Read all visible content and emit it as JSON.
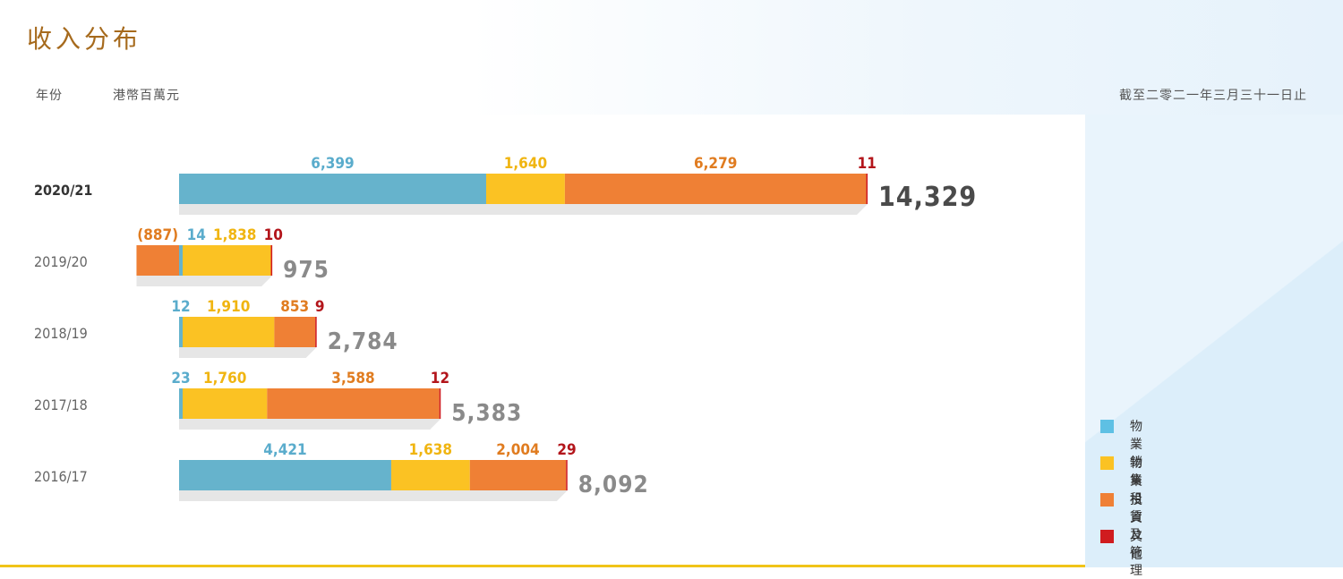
{
  "title": "收入分布",
  "header": {
    "year_label": "年份",
    "unit_label": "港幣百萬元",
    "as_of_label": "截至二零二一年三月三十一日止"
  },
  "colors": {
    "sales": "#66b3cc",
    "leasing": "#fbc223",
    "investment": "#ef8035",
    "others": "#d01c1f",
    "label_sales": "#5aaccc",
    "label_leasing": "#f0b511",
    "label_investment": "#e07c20",
    "label_others": "#b3151b"
  },
  "legend": [
    {
      "label": "物業銷售",
      "color": "#5ec0e4"
    },
    {
      "label": "物業租賃及管理",
      "color": "#fbc223"
    },
    {
      "label": "投資",
      "color": "#ef8035"
    },
    {
      "label": "其他",
      "color": "#d01c1f"
    }
  ],
  "chart_data": {
    "type": "bar",
    "orientation": "horizontal",
    "stacked": true,
    "categories": [
      "2020/21",
      "2019/20",
      "2018/19",
      "2017/18",
      "2016/17"
    ],
    "series": [
      {
        "name": "物業銷售",
        "values": [
          6399,
          14,
          12,
          23,
          4421
        ],
        "labels": [
          "6,399",
          "14",
          "12",
          "23",
          "4,421"
        ]
      },
      {
        "name": "物業租賃及管理",
        "values": [
          1640,
          1838,
          1910,
          1760,
          1638
        ],
        "labels": [
          "1,640",
          "1,838",
          "1,910",
          "1,760",
          "1,638"
        ]
      },
      {
        "name": "投資",
        "values": [
          6279,
          -887,
          853,
          3588,
          2004
        ],
        "labels": [
          "6,279",
          "(887)",
          "853",
          "3,588",
          "2,004"
        ]
      },
      {
        "name": "其他",
        "values": [
          11,
          10,
          9,
          12,
          29
        ],
        "labels": [
          "11",
          "10",
          "9",
          "12",
          "29"
        ]
      }
    ],
    "totals": [
      14329,
      975,
      2784,
      5383,
      8092
    ],
    "total_labels": [
      "14,329",
      "975",
      "2,784",
      "5,383",
      "8,092"
    ],
    "highlight_category": "2020/21",
    "legend_position": "right"
  }
}
